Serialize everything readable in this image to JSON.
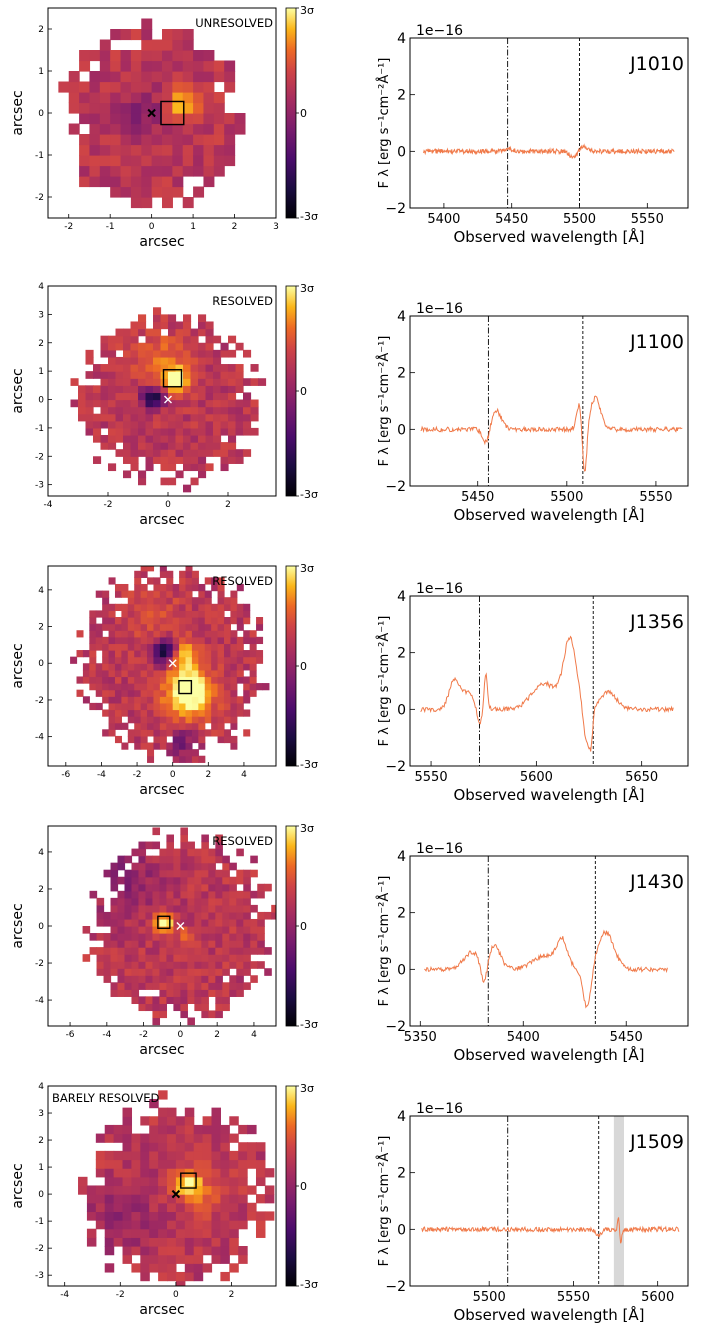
{
  "colorbar": {
    "top_label": "3σ",
    "mid_label": "0",
    "bottom_label": "-3σ"
  },
  "colors": {
    "spectrum": "#f07a4a",
    "sky_band": "#d8d8d8",
    "map_outline": "#000000"
  },
  "chart_data": [
    {
      "type": "heatmap",
      "panel": "J1010 map",
      "label": "UNRESOLVED",
      "xlabel": "arcsec",
      "ylabel": "arcsec",
      "xlim": [
        -2.5,
        3
      ],
      "ylim": [
        -2.5,
        2.5
      ],
      "xticks": [
        -2,
        -1,
        0,
        1,
        2,
        3
      ],
      "yticks": [
        -2,
        -1,
        0,
        1,
        2
      ],
      "extent_radius": 2.2,
      "cell": 0.25,
      "marker_cross": [
        0,
        0
      ],
      "marker_cross_color": "black",
      "box": [
        0.5,
        0.0,
        0.55
      ],
      "blobs": [
        {
          "x": 0.7,
          "y": 0.2,
          "s": 0.4,
          "a": 1.9
        },
        {
          "x": -0.2,
          "y": 0.0,
          "s": 0.6,
          "a": -0.9
        }
      ]
    },
    {
      "type": "line",
      "panel": "J1010 spectrum",
      "name": "J1010",
      "xlabel": "Observed wavelength [Å]",
      "ylabel": "F λ [erg s⁻¹cm⁻²Å⁻¹]",
      "multiplier": "1e−16",
      "xlim": [
        5375,
        5580
      ],
      "ylim": [
        -2,
        4
      ],
      "xticks": [
        5400,
        5450,
        5500,
        5550
      ],
      "yticks": [
        -2,
        0,
        2,
        4
      ],
      "vline_dashdot": 5447,
      "vline_dashed": 5500,
      "sky_band": null,
      "features": [
        {
          "c": 5447,
          "w": 3,
          "a": 0.1
        },
        {
          "c": 5496,
          "w": 3,
          "a": -0.25
        },
        {
          "c": 5502,
          "w": 3,
          "a": 0.2
        }
      ],
      "range": [
        5385,
        5570
      ]
    },
    {
      "type": "heatmap",
      "panel": "J1100 map",
      "label": "RESOLVED",
      "xlabel": "arcsec",
      "ylabel": "arcsec",
      "xlim": [
        -4,
        3.6
      ],
      "ylim": [
        -3.4,
        4
      ],
      "xticks": [
        -4,
        -2,
        0,
        2
      ],
      "yticks": [
        -3,
        -2,
        -1,
        0,
        1,
        2,
        3,
        4
      ],
      "extent_radius": 3.0,
      "cell": 0.25,
      "marker_cross": [
        0,
        0
      ],
      "marker_cross_color": "white",
      "box": [
        0.15,
        0.75,
        0.6
      ],
      "blobs": [
        {
          "x": 0.3,
          "y": 0.7,
          "s": 0.5,
          "a": 2.6
        },
        {
          "x": -0.5,
          "y": 0.1,
          "s": 0.35,
          "a": -3.2
        },
        {
          "x": -0.3,
          "y": 1.5,
          "s": 0.9,
          "a": 1.0
        }
      ]
    },
    {
      "type": "line",
      "panel": "J1100 spectrum",
      "name": "J1100",
      "xlabel": "Observed wavelength [Å]",
      "ylabel": "F λ [erg s⁻¹cm⁻²Å⁻¹]",
      "multiplier": "1e−16",
      "xlim": [
        5412,
        5568
      ],
      "ylim": [
        -2,
        4
      ],
      "xticks": [
        5450,
        5500,
        5550
      ],
      "yticks": [
        -2,
        0,
        2,
        4
      ],
      "vline_dashdot": 5456,
      "vline_dashed": 5509,
      "sky_band": null,
      "features": [
        {
          "c": 5455,
          "w": 2,
          "a": -0.6
        },
        {
          "c": 5460,
          "w": 3,
          "a": 0.7
        },
        {
          "c": 5507,
          "w": 1.5,
          "a": 0.9
        },
        {
          "c": 5510,
          "w": 1.2,
          "a": -1.8
        },
        {
          "c": 5516,
          "w": 3,
          "a": 1.1
        }
      ],
      "range": [
        5418,
        5565
      ]
    },
    {
      "type": "heatmap",
      "panel": "J1356 map",
      "label": "RESOLVED",
      "xlabel": "arcsec",
      "ylabel": "arcsec",
      "xlim": [
        -7,
        5.8
      ],
      "ylim": [
        -5.6,
        5.3
      ],
      "xticks": [
        -6,
        -4,
        -2,
        0,
        2,
        4
      ],
      "yticks": [
        -4,
        -2,
        0,
        2,
        4
      ],
      "extent_radius": 5.2,
      "cell": 0.36,
      "marker_cross": [
        0,
        0
      ],
      "marker_cross_color": "white",
      "box": [
        0.7,
        -1.3,
        0.7
      ],
      "blobs": [
        {
          "x": 0.9,
          "y": -1.6,
          "s": 1.3,
          "a": 3.4
        },
        {
          "x": -0.4,
          "y": 0.6,
          "s": 0.7,
          "a": -3.2
        },
        {
          "x": 0.6,
          "y": 0.4,
          "s": 0.9,
          "a": 2.0
        },
        {
          "x": -1.0,
          "y": 2.5,
          "s": 1.8,
          "a": 0.5
        },
        {
          "x": 0.5,
          "y": -4.3,
          "s": 0.8,
          "a": -1.2
        }
      ]
    },
    {
      "type": "line",
      "panel": "J1356 spectrum",
      "name": "J1356",
      "xlabel": "Observed wavelength [Å]",
      "ylabel": "F λ [erg s⁻¹cm⁻²Å⁻¹]",
      "multiplier": "1e−16",
      "xlim": [
        5540,
        5672
      ],
      "ylim": [
        -2,
        4
      ],
      "xticks": [
        5550,
        5600,
        5650
      ],
      "yticks": [
        -2,
        0,
        2,
        4
      ],
      "vline_dashdot": 5573,
      "vline_dashed": 5627,
      "sky_band": null,
      "features": [
        {
          "c": 5561,
          "w": 2.5,
          "a": 1.0
        },
        {
          "c": 5568,
          "w": 3,
          "a": 0.6
        },
        {
          "c": 5573,
          "w": 1.5,
          "a": -0.6
        },
        {
          "c": 5576,
          "w": 0.8,
          "a": 1.3
        },
        {
          "c": 5604,
          "w": 6,
          "a": 0.9
        },
        {
          "c": 5616,
          "w": 3,
          "a": 2.4
        },
        {
          "c": 5624,
          "w": 1.5,
          "a": -1.3
        },
        {
          "c": 5626,
          "w": 0.8,
          "a": -0.9
        },
        {
          "c": 5634,
          "w": 4,
          "a": 0.6
        }
      ],
      "range": [
        5545,
        5665
      ]
    },
    {
      "type": "heatmap",
      "panel": "J1430 map",
      "label": "RESOLVED",
      "xlabel": "arcsec",
      "ylabel": "arcsec",
      "xlim": [
        -7.2,
        5.2
      ],
      "ylim": [
        -5.4,
        5.4
      ],
      "xticks": [
        -6,
        -4,
        -2,
        0,
        2,
        4
      ],
      "yticks": [
        -4,
        -2,
        0,
        2,
        4
      ],
      "extent_radius": 5.0,
      "cell": 0.38,
      "marker_cross": [
        0,
        0
      ],
      "marker_cross_color": "white",
      "box": [
        -0.9,
        0.2,
        0.65
      ],
      "blobs": [
        {
          "x": -0.9,
          "y": 0.2,
          "s": 0.5,
          "a": 2.8
        },
        {
          "x": 0.3,
          "y": -0.7,
          "s": 0.6,
          "a": 1.0
        },
        {
          "x": -3.0,
          "y": 2.5,
          "s": 2.0,
          "a": -0.8
        }
      ]
    },
    {
      "type": "line",
      "panel": "J1430 spectrum",
      "name": "J1430",
      "xlabel": "Observed wavelength [Å]",
      "ylabel": "F λ [erg s⁻¹cm⁻²Å⁻¹]",
      "multiplier": "1e−16",
      "xlim": [
        5345,
        5480
      ],
      "ylim": [
        -2,
        4
      ],
      "xticks": [
        5350,
        5400,
        5450
      ],
      "yticks": [
        -2,
        0,
        2,
        4
      ],
      "vline_dashdot": 5383,
      "vline_dashed": 5435,
      "sky_band": null,
      "features": [
        {
          "c": 5375,
          "w": 4,
          "a": 0.6
        },
        {
          "c": 5381,
          "w": 1.5,
          "a": -0.8
        },
        {
          "c": 5386,
          "w": 3,
          "a": 0.8
        },
        {
          "c": 5411,
          "w": 6,
          "a": 0.5
        },
        {
          "c": 5419,
          "w": 2.5,
          "a": 0.9
        },
        {
          "c": 5431,
          "w": 2,
          "a": -1.4
        },
        {
          "c": 5440,
          "w": 4,
          "a": 1.3
        }
      ],
      "range": [
        5352,
        5470
      ]
    },
    {
      "type": "heatmap",
      "panel": "J1509 map",
      "label": "BARELY RESOLVED",
      "xlabel": "arcsec",
      "ylabel": "arcsec",
      "xlim": [
        -4.6,
        3.6
      ],
      "ylim": [
        -3.4,
        4
      ],
      "xticks": [
        -4,
        -2,
        0,
        2
      ],
      "yticks": [
        -3,
        -2,
        -1,
        0,
        1,
        2,
        3,
        4
      ],
      "extent_radius": 3.4,
      "cell": 0.32,
      "marker_cross": [
        0,
        0
      ],
      "marker_cross_color": "black",
      "box": [
        0.45,
        0.5,
        0.55
      ],
      "blobs": [
        {
          "x": 0.4,
          "y": 0.4,
          "s": 0.5,
          "a": 2.3
        },
        {
          "x": 1.0,
          "y": 0.1,
          "s": 0.8,
          "a": 0.8
        },
        {
          "x": -2.0,
          "y": -1.0,
          "s": 1.3,
          "a": -0.6
        }
      ]
    },
    {
      "type": "line",
      "panel": "J1509 spectrum",
      "name": "J1509",
      "xlabel": "Observed wavelength [Å]",
      "ylabel": "F λ [erg s⁻¹cm⁻²Å⁻¹]",
      "multiplier": "1e−16",
      "xlim": [
        5453,
        5618
      ],
      "ylim": [
        -2,
        4
      ],
      "xticks": [
        5500,
        5550,
        5600
      ],
      "yticks": [
        -2,
        0,
        2,
        4
      ],
      "vline_dashdot": 5511,
      "vline_dashed": 5565,
      "sky_band": [
        5574,
        5580
      ],
      "features": [
        {
          "c": 5565,
          "w": 2,
          "a": -0.2
        },
        {
          "c": 5577,
          "w": 0.6,
          "a": 0.5
        },
        {
          "c": 5578,
          "w": 0.6,
          "a": -0.6
        }
      ],
      "range": [
        5460,
        5613
      ]
    }
  ]
}
